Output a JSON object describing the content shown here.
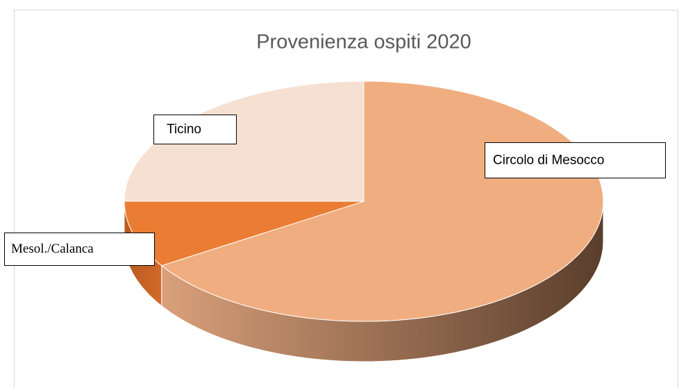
{
  "chart_data": {
    "type": "pie",
    "title": "Provenienza ospiti 2020",
    "categories": [
      "Circolo di Mesocco",
      "Mesol./Calanca",
      "Ticino"
    ],
    "values": [
      66,
      9,
      25
    ],
    "colors": [
      "#f0ae80",
      "#ea7d33",
      "#f6e0d2"
    ]
  }
}
